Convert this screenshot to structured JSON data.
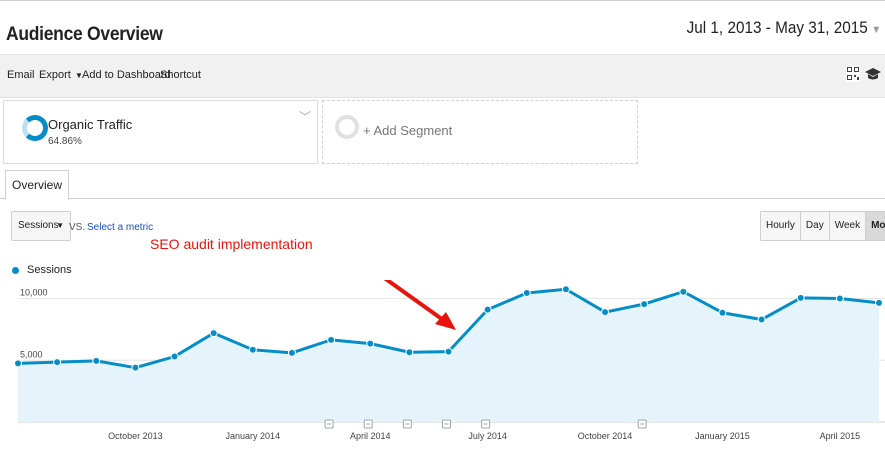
{
  "header": {
    "title": "Audience Overview",
    "date_range": "Jul 1, 2013 - May 31, 2015"
  },
  "toolbar": {
    "email": "Email",
    "export": "Export",
    "add_to_dashboard": "Add to Dashboard",
    "shortcut": "Shortcut",
    "icons": [
      "qr-code-icon",
      "graduation-cap-icon"
    ]
  },
  "segments": {
    "organic": {
      "name": "Organic Traffic",
      "percent": "64.86%"
    },
    "add_label": "+ Add Segment"
  },
  "tabs": {
    "overview": "Overview"
  },
  "controls": {
    "metric": "Sessions",
    "vs": "VS.",
    "select_metric": "Select a metric",
    "granularity": [
      "Hourly",
      "Day",
      "Week",
      "Month"
    ],
    "selected_granularity": "Month"
  },
  "legend": {
    "series": "Sessions"
  },
  "annotation": "SEO audit implementation",
  "colors": {
    "series": "#058dc7",
    "fill": "#e5f4fb",
    "annotation": "#e8140c"
  },
  "chart_data": {
    "type": "area",
    "x": [
      "Jul 2013",
      "Aug 2013",
      "Sep 2013",
      "Oct 2013",
      "Nov 2013",
      "Dec 2013",
      "Jan 2014",
      "Feb 2014",
      "Mar 2014",
      "Apr 2014",
      "May 2014",
      "Jun 2014",
      "Jul 2014",
      "Aug 2014",
      "Sep 2014",
      "Oct 2014",
      "Nov 2014",
      "Dec 2014",
      "Jan 2015",
      "Feb 2015",
      "Mar 2015",
      "Apr 2015",
      "May 2015"
    ],
    "series": [
      {
        "name": "Sessions",
        "values": [
          4750,
          4850,
          4950,
          4400,
          5300,
          7200,
          5850,
          5600,
          6650,
          6350,
          5650,
          5700,
          9100,
          10450,
          10750,
          8900,
          9550,
          10550,
          8850,
          8300,
          10050,
          10000,
          9650
        ]
      }
    ],
    "y_ticks": [
      {
        "value": 5000,
        "label": "5,000"
      },
      {
        "value": 10000,
        "label": "10,000"
      }
    ],
    "ylim": [
      0,
      11500
    ],
    "x_tick_labels": [
      {
        "index": 3,
        "label": "October 2013"
      },
      {
        "index": 6,
        "label": "January 2014"
      },
      {
        "index": 9,
        "label": "April 2014"
      },
      {
        "index": 12,
        "label": "July 2014"
      },
      {
        "index": 15,
        "label": "October 2014"
      },
      {
        "index": 18,
        "label": "January 2015"
      },
      {
        "index": 21,
        "label": "April 2015"
      }
    ],
    "annotation_markers": [
      8,
      9,
      10,
      11,
      12,
      16
    ],
    "grid": true
  }
}
